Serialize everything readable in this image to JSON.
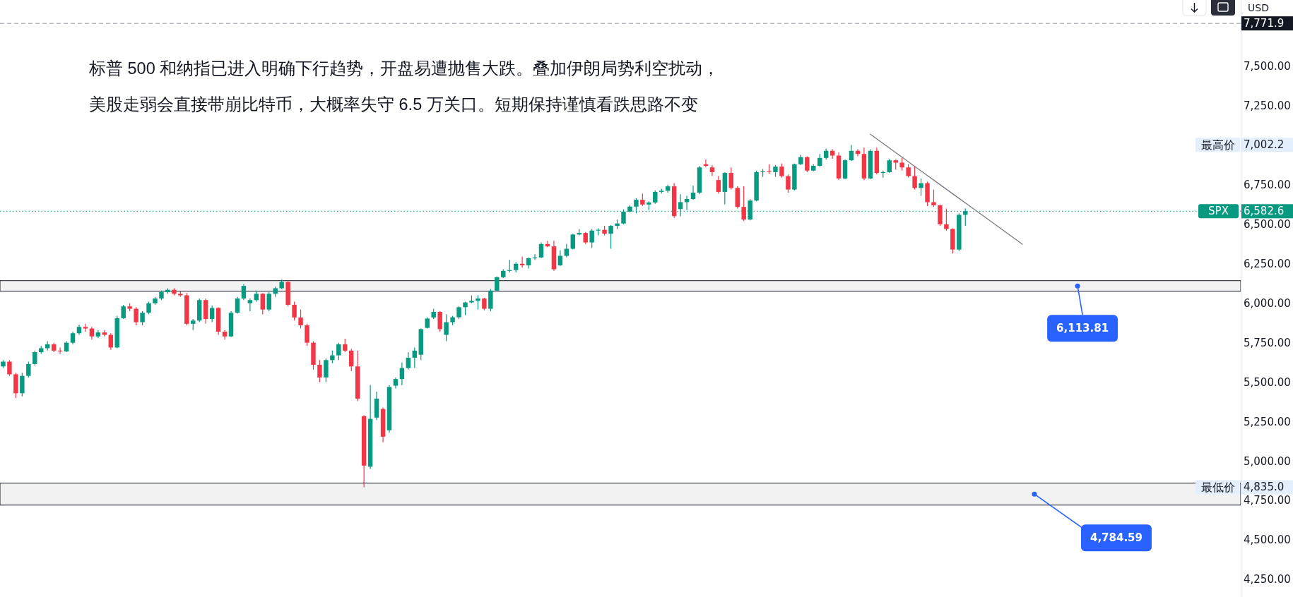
{
  "chart_data": {
    "type": "candlestick",
    "title": "标普 500 和纳指已进入明确下行趋势，开盘易遭抛售大跌。叠加伊朗局势利空扰动，",
    "subtitle": "美股走弱会直接带崩比特币，大概率失守 6.5 万关口。短期保持谨慎看跌思路不变",
    "ylabel": "USD",
    "categories": [
      null,
      null,
      null,
      null,
      null,
      null,
      null,
      null,
      null,
      null,
      null,
      null,
      null,
      null,
      null,
      null,
      null,
      null,
      null,
      null,
      null,
      null,
      null,
      null,
      null,
      null,
      null,
      null,
      null,
      null,
      null,
      null,
      null,
      null,
      null,
      null,
      null,
      null,
      null,
      null,
      null,
      null,
      null,
      null,
      null,
      null,
      null,
      null,
      null,
      null,
      null,
      null,
      null,
      null,
      null,
      null,
      null,
      null,
      null,
      null,
      null,
      null,
      null,
      null,
      null,
      null,
      null,
      null,
      null,
      null,
      null,
      null,
      null,
      null,
      null,
      null,
      null,
      null,
      null,
      null,
      null,
      null,
      null,
      null,
      null,
      null,
      null,
      null,
      null,
      null,
      null,
      null,
      null,
      null,
      null,
      null,
      null,
      null,
      null,
      null,
      null,
      null,
      null,
      null,
      null,
      null,
      null,
      null,
      null,
      null,
      null,
      null,
      null,
      null,
      null,
      null,
      null,
      null,
      null,
      null,
      null,
      null,
      null,
      null,
      null,
      null,
      null,
      null,
      null,
      null,
      null,
      null,
      null,
      null,
      null,
      null,
      null,
      null,
      null,
      null,
      null,
      null,
      null,
      null,
      null,
      null,
      null,
      null,
      null,
      null,
      null,
      null,
      null,
      null,
      null,
      null,
      null,
      null,
      null,
      null,
      null,
      null,
      null,
      null,
      null,
      null,
      null,
      null,
      null,
      null,
      null,
      null,
      null,
      null,
      null,
      null,
      null,
      null,
      null,
      null,
      null,
      null,
      null,
      null,
      null,
      null,
      null,
      null,
      null,
      null,
      null,
      null,
      null,
      null,
      null,
      null
    ],
    "ohlc": [
      [
        5600,
        5640,
        5590,
        5630
      ],
      [
        5630,
        5640,
        5540,
        5550
      ],
      [
        5550,
        5560,
        5400,
        5430
      ],
      [
        5430,
        5560,
        5410,
        5540
      ],
      [
        5540,
        5630,
        5530,
        5615
      ],
      [
        5615,
        5700,
        5605,
        5690
      ],
      [
        5690,
        5730,
        5680,
        5715
      ],
      [
        5715,
        5760,
        5700,
        5740
      ],
      [
        5740,
        5750,
        5690,
        5700
      ],
      [
        5700,
        5720,
        5680,
        5695
      ],
      [
        5695,
        5760,
        5690,
        5750
      ],
      [
        5750,
        5820,
        5740,
        5810
      ],
      [
        5810,
        5865,
        5800,
        5850
      ],
      [
        5850,
        5870,
        5820,
        5840
      ],
      [
        5840,
        5850,
        5770,
        5790
      ],
      [
        5790,
        5830,
        5780,
        5815
      ],
      [
        5815,
        5830,
        5790,
        5800
      ],
      [
        5800,
        5810,
        5705,
        5720
      ],
      [
        5720,
        5920,
        5715,
        5905
      ],
      [
        5905,
        5990,
        5900,
        5980
      ],
      [
        5980,
        6000,
        5950,
        5965
      ],
      [
        5965,
        5975,
        5860,
        5880
      ],
      [
        5880,
        5950,
        5860,
        5940
      ],
      [
        5940,
        6010,
        5930,
        6000
      ],
      [
        6000,
        6040,
        5990,
        6030
      ],
      [
        6030,
        6080,
        6020,
        6070
      ],
      [
        6070,
        6095,
        6060,
        6085
      ],
      [
        6085,
        6095,
        6050,
        6060
      ],
      [
        6060,
        6075,
        6040,
        6050
      ],
      [
        6050,
        6065,
        5860,
        5870
      ],
      [
        5870,
        5900,
        5830,
        5890
      ],
      [
        5890,
        6030,
        5880,
        6020
      ],
      [
        6020,
        6030,
        5870,
        5900
      ],
      [
        5900,
        5985,
        5880,
        5970
      ],
      [
        5970,
        5975,
        5800,
        5820
      ],
      [
        5820,
        5830,
        5770,
        5790
      ],
      [
        5790,
        5950,
        5785,
        5940
      ],
      [
        5940,
        6040,
        5935,
        6030
      ],
      [
        6030,
        6120,
        6020,
        6110
      ],
      [
        6000,
        6030,
        5950,
        6020
      ],
      [
        6020,
        6080,
        6010,
        6060
      ],
      [
        6060,
        6065,
        5930,
        5960
      ],
      [
        5960,
        6070,
        5950,
        6060
      ],
      [
        6060,
        6105,
        6040,
        6095
      ],
      [
        6095,
        6150,
        6090,
        6135
      ],
      [
        6135,
        6145,
        5980,
        5990
      ],
      [
        5990,
        6010,
        5890,
        5910
      ],
      [
        5910,
        5960,
        5840,
        5860
      ],
      [
        5860,
        5870,
        5730,
        5750
      ],
      [
        5750,
        5760,
        5580,
        5610
      ],
      [
        5610,
        5640,
        5500,
        5530
      ],
      [
        5530,
        5650,
        5500,
        5640
      ],
      [
        5640,
        5700,
        5620,
        5670
      ],
      [
        5670,
        5750,
        5640,
        5740
      ],
      [
        5740,
        5775,
        5690,
        5700
      ],
      [
        5700,
        5710,
        5570,
        5600
      ],
      [
        5600,
        5700,
        5380,
        5396
      ],
      [
        5285,
        5290,
        4835,
        4972
      ],
      [
        4965,
        5481,
        4950,
        5268
      ],
      [
        5276,
        5440,
        5260,
        5396
      ],
      [
        5330,
        5340,
        5120,
        5155
      ],
      [
        5196,
        5480,
        5180,
        5470
      ],
      [
        5478,
        5530,
        5460,
        5520
      ],
      [
        5520,
        5625,
        5480,
        5590
      ],
      [
        5590,
        5690,
        5580,
        5655
      ],
      [
        5655,
        5720,
        5590,
        5700
      ],
      [
        5674,
        5840,
        5640,
        5836
      ],
      [
        5844,
        5910,
        5840,
        5903
      ],
      [
        5910,
        5965,
        5900,
        5945
      ],
      [
        5945,
        5950,
        5820,
        5836
      ],
      [
        5800,
        5930,
        5760,
        5880
      ],
      [
        5880,
        5920,
        5860,
        5911
      ],
      [
        5911,
        5980,
        5900,
        5975
      ],
      [
        5975,
        6010,
        5925,
        6005
      ],
      [
        6005,
        6050,
        6000,
        6015
      ],
      [
        6015,
        6050,
        5960,
        6030
      ],
      [
        6030,
        6035,
        5955,
        5965
      ],
      [
        5965,
        6090,
        5950,
        6080
      ],
      [
        6080,
        6170,
        6075,
        6165
      ],
      [
        6165,
        6215,
        6160,
        6205
      ],
      [
        6205,
        6275,
        6195,
        6210
      ],
      [
        6210,
        6260,
        6195,
        6250
      ],
      [
        6250,
        6295,
        6225,
        6240
      ],
      [
        6240,
        6290,
        6220,
        6285
      ],
      [
        6285,
        6310,
        6275,
        6290
      ],
      [
        6290,
        6385,
        6285,
        6375
      ],
      [
        6375,
        6395,
        6355,
        6360
      ],
      [
        6360,
        6395,
        6205,
        6215
      ],
      [
        6240,
        6335,
        6235,
        6300
      ],
      [
        6300,
        6375,
        6290,
        6345
      ],
      [
        6345,
        6440,
        6340,
        6435
      ],
      [
        6435,
        6470,
        6430,
        6445
      ],
      [
        6445,
        6450,
        6375,
        6385
      ],
      [
        6385,
        6470,
        6350,
        6460
      ],
      [
        6460,
        6475,
        6430,
        6465
      ],
      [
        6465,
        6490,
        6430,
        6440
      ],
      [
        6440,
        6495,
        6345,
        6490
      ],
      [
        6490,
        6530,
        6470,
        6505
      ],
      [
        6505,
        6595,
        6500,
        6580
      ],
      [
        6580,
        6620,
        6575,
        6612
      ],
      [
        6612,
        6665,
        6570,
        6655
      ],
      [
        6655,
        6695,
        6615,
        6625
      ],
      [
        6625,
        6645,
        6590,
        6638
      ],
      [
        6638,
        6715,
        6630,
        6705
      ],
      [
        6705,
        6725,
        6695,
        6712
      ],
      [
        6712,
        6750,
        6700,
        6740
      ],
      [
        6740,
        6760,
        6540,
        6552
      ],
      [
        6596,
        6690,
        6550,
        6640
      ],
      [
        6640,
        6680,
        6590,
        6660
      ],
      [
        6660,
        6745,
        6655,
        6700
      ],
      [
        6700,
        6870,
        6690,
        6860
      ],
      [
        6880,
        6910,
        6860,
        6870
      ],
      [
        6860,
        6875,
        6805,
        6830
      ],
      [
        6780,
        6805,
        6695,
        6705
      ],
      [
        6705,
        6830,
        6626,
        6825
      ],
      [
        6825,
        6860,
        6720,
        6730
      ],
      [
        6730,
        6740,
        6600,
        6610
      ],
      [
        6610,
        6740,
        6520,
        6530
      ],
      [
        6530,
        6660,
        6525,
        6650
      ],
      [
        6650,
        6840,
        6645,
        6830
      ],
      [
        6830,
        6850,
        6800,
        6835
      ],
      [
        6835,
        6880,
        6820,
        6830
      ],
      [
        6830,
        6875,
        6800,
        6865
      ],
      [
        6865,
        6885,
        6795,
        6805
      ],
      [
        6805,
        6815,
        6700,
        6720
      ],
      [
        6720,
        6885,
        6715,
        6880
      ],
      [
        6880,
        6940,
        6875,
        6925
      ],
      [
        6925,
        6930,
        6830,
        6840
      ],
      [
        6840,
        6880,
        6835,
        6870
      ],
      [
        6870,
        6945,
        6865,
        6920
      ],
      [
        6920,
        6980,
        6910,
        6965
      ],
      [
        6965,
        6975,
        6915,
        6935
      ],
      [
        6935,
        6955,
        6780,
        6790
      ],
      [
        6790,
        6910,
        6785,
        6905
      ],
      [
        6905,
        7002.2,
        6900,
        6965
      ],
      [
        6965,
        6975,
        6930,
        6945
      ],
      [
        6945,
        6985,
        6780,
        6790
      ],
      [
        6790,
        6975,
        6785,
        6965
      ],
      [
        6965,
        6985,
        6815,
        6825
      ],
      [
        6825,
        6840,
        6795,
        6830
      ],
      [
        6830,
        6915,
        6825,
        6905
      ],
      [
        6905,
        6910,
        6845,
        6890
      ],
      [
        6890,
        6920,
        6840,
        6860
      ],
      [
        6860,
        6880,
        6795,
        6805
      ],
      [
        6805,
        6865,
        6720,
        6730
      ],
      [
        6730,
        6790,
        6680,
        6760
      ],
      [
        6760,
        6770,
        6615,
        6640
      ],
      [
        6640,
        6720,
        6610,
        6620
      ],
      [
        6620,
        6625,
        6490,
        6500
      ],
      [
        6500,
        6600,
        6460,
        6470
      ],
      [
        6470,
        6475,
        6315,
        6340
      ],
      [
        6340,
        6570,
        6330,
        6560
      ],
      [
        6560,
        6600,
        6490,
        6582.6
      ],
      null,
      null,
      null,
      null,
      null,
      null,
      null,
      null,
      null,
      null,
      null,
      null,
      null,
      null,
      null,
      null,
      null,
      null,
      null,
      null,
      null,
      null,
      null,
      null,
      null,
      null,
      null,
      null,
      null,
      null,
      null,
      null,
      null,
      null,
      null,
      null,
      null,
      null,
      null,
      null,
      null,
      null,
      null
    ],
    "series": [
      {
        "type": "line",
        "color": "#787b86",
        "values": [
          null,
          null,
          null,
          null,
          null,
          null,
          null,
          null,
          null,
          null,
          null,
          null,
          null,
          null,
          null,
          null,
          null,
          null,
          null,
          null,
          null,
          null,
          null,
          null,
          null,
          null,
          null,
          null,
          null,
          null,
          null,
          null,
          null,
          null,
          null,
          null,
          null,
          null,
          null,
          null,
          null,
          null,
          null,
          null,
          null,
          null,
          null,
          null,
          null,
          null,
          null,
          null,
          null,
          null,
          null,
          null,
          null,
          null,
          null,
          null,
          null,
          null,
          null,
          null,
          null,
          null,
          null,
          null,
          null,
          null,
          null,
          null,
          null,
          null,
          null,
          null,
          null,
          null,
          null,
          null,
          null,
          null,
          null,
          null,
          null,
          null,
          null,
          null,
          null,
          null,
          null,
          null,
          null,
          null,
          null,
          null,
          null,
          null,
          null,
          null,
          null,
          null,
          null,
          null,
          null,
          null,
          null,
          null,
          null,
          null,
          null,
          null,
          null,
          null,
          null,
          null,
          null,
          null,
          null,
          null,
          null,
          null,
          null,
          null,
          null,
          null,
          null,
          null,
          null,
          null,
          null,
          null,
          null,
          null,
          null,
          null,
          null,
          7070,
          7041,
          7012,
          6983,
          6954,
          6925,
          6896,
          6867,
          6838,
          6809,
          6780,
          6751,
          6722,
          6693,
          6664,
          6635,
          6606,
          6577,
          6548,
          6519,
          6490,
          6461,
          6432,
          6403,
          6374,
          null,
          null,
          null,
          null,
          null,
          null,
          null,
          null,
          null,
          null,
          null,
          null,
          null,
          null,
          null,
          null,
          null,
          null,
          null,
          null,
          null,
          null,
          null,
          null,
          null,
          null,
          null,
          null,
          null,
          null,
          null,
          null,
          null,
          null
        ]
      }
    ],
    "ylim": [
      4140,
      7920
    ],
    "yticks": [
      {
        "value": 4250,
        "label": "4,250.00"
      },
      {
        "value": 4500,
        "label": "4,500.00"
      },
      {
        "value": 4750,
        "label": "4,750.00"
      },
      {
        "value": 5000,
        "label": "5,000.00"
      },
      {
        "value": 5250,
        "label": "5,250.00"
      },
      {
        "value": 5500,
        "label": "5,500.00"
      },
      {
        "value": 5750,
        "label": "5,750.00"
      },
      {
        "value": 6000,
        "label": "6,000.00"
      },
      {
        "value": 6250,
        "label": "6,250.00"
      },
      {
        "value": 6500,
        "label": "6,500.00"
      },
      {
        "value": 6750,
        "label": "6,750.00"
      },
      {
        "value": 7250,
        "label": "7,250.00"
      },
      {
        "value": 7500,
        "label": "7,500.00"
      }
    ],
    "tick_labels": "y",
    "ref_lines": [
      {
        "axis": "y",
        "value": 6582.6,
        "label": "SPX",
        "color": "#089981",
        "line_style": "dotted"
      },
      {
        "axis": "y",
        "value": 7771.9,
        "color": "#9598a1",
        "line_style": "dashed"
      }
    ],
    "bands": [
      {
        "axis": "y",
        "from": 6076,
        "to": 6143,
        "color": "#f2f2f2",
        "label": "6,113.81"
      },
      {
        "axis": "y",
        "from": 4722,
        "to": 4861,
        "color": "#f2f2f2",
        "label": "4,784.59"
      }
    ],
    "annotations": [
      "最高价",
      "7,002.2",
      "最低价",
      "4,835.0",
      "6,582.6",
      "7,771.9"
    ]
  }
}
